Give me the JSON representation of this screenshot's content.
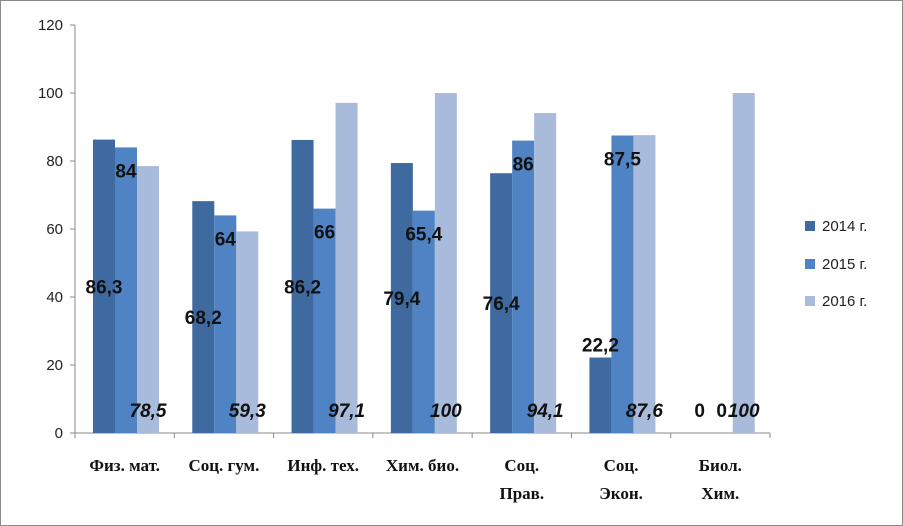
{
  "chart_data": {
    "type": "bar",
    "categories": [
      [
        "Физ. мат."
      ],
      [
        "Соц. гум."
      ],
      [
        "Инф. тех."
      ],
      [
        "Хим. био."
      ],
      [
        "Соц.",
        "Прав."
      ],
      [
        "Соц.",
        "Экон."
      ],
      [
        "Биол.",
        "Хим."
      ]
    ],
    "series": [
      {
        "name": "2014 г.",
        "color": "#3f6aa0",
        "values": [
          86.3,
          68.2,
          86.2,
          79.4,
          76.4,
          22.2,
          0
        ],
        "labels": [
          "86,3",
          "68,2",
          "86,2",
          "79,4",
          "76,4",
          "22,2",
          "0"
        ]
      },
      {
        "name": "2015 г.",
        "color": "#4f83c4",
        "values": [
          84,
          64,
          66,
          65.4,
          86,
          87.5,
          0
        ],
        "labels": [
          "84",
          "64",
          "66",
          "65,4",
          "86",
          "87,5",
          "0"
        ]
      },
      {
        "name": "2016 г.",
        "color": "#a8bbdb",
        "values": [
          78.5,
          59.3,
          97.1,
          100,
          94.1,
          87.6,
          100
        ],
        "labels": [
          "78,5",
          "59,3",
          "97,1",
          "100",
          "94,1",
          "87,6",
          "100"
        ]
      }
    ],
    "ylim": [
      0,
      120
    ],
    "yticks": [
      0,
      20,
      40,
      60,
      80,
      100,
      120
    ],
    "grid": false,
    "legend_position": "right"
  }
}
